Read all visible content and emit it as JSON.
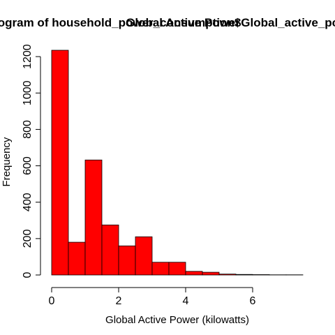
{
  "chart_data": {
    "type": "bar",
    "title_main": "Histogram of household_power_consumption$Global_active_power",
    "title_overlay": "Global Active Power",
    "xlabel": "Global Active Power (kilowatts)",
    "ylabel": "Frequency",
    "bin_edges": [
      0,
      0.5,
      1,
      1.5,
      2,
      2.5,
      3,
      3.5,
      4,
      4.5,
      5,
      5.5,
      6,
      6.5,
      7,
      7.5
    ],
    "counts": [
      1235,
      180,
      632,
      275,
      160,
      210,
      70,
      70,
      20,
      15,
      5,
      3,
      2,
      1,
      1
    ],
    "xlim": [
      0,
      7.5
    ],
    "ylim": [
      0,
      1235
    ],
    "x_ticks": [
      0,
      2,
      4,
      6
    ],
    "x_tick_labels": [
      "0",
      "2",
      "4",
      "6"
    ],
    "y_ticks": [
      0,
      200,
      400,
      600,
      800,
      1000,
      1200
    ],
    "y_tick_labels": [
      "0",
      "200",
      "400",
      "600",
      "800",
      "1000",
      "1200"
    ],
    "bar_color": "#ff0000",
    "grid": false,
    "legend": "none"
  }
}
